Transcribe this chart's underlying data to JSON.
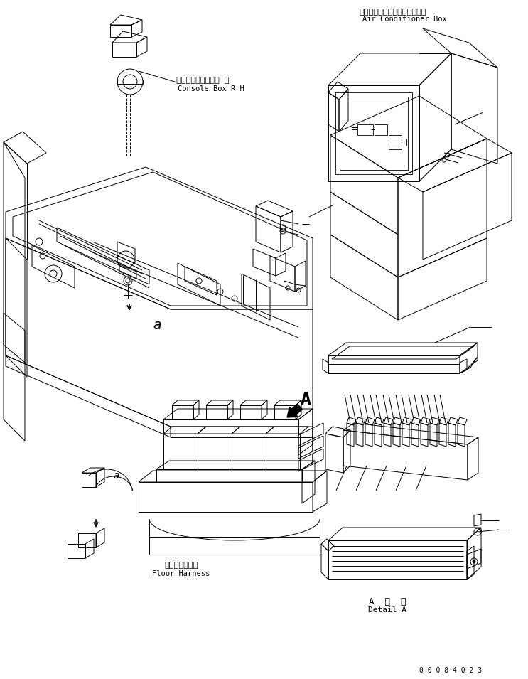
{
  "bg_color": "#ffffff",
  "line_color": "#000000",
  "fig_width": 7.43,
  "fig_height": 9.55,
  "dpi": 100,
  "label_ac_jp": "エアーコンディショナボックス",
  "label_ac_en": "Air Conditioner Box",
  "label_console_jp": "コンソールボックス 右",
  "label_console_en": "Console Box R H",
  "label_floor_jp": "フロアハーネス",
  "label_floor_en": "Floor Harness",
  "label_detail_jp": "A  詳  細",
  "label_detail_en": "Detail A",
  "label_A": "A",
  "part_number": "0 0 0 8 4 0 2 3"
}
